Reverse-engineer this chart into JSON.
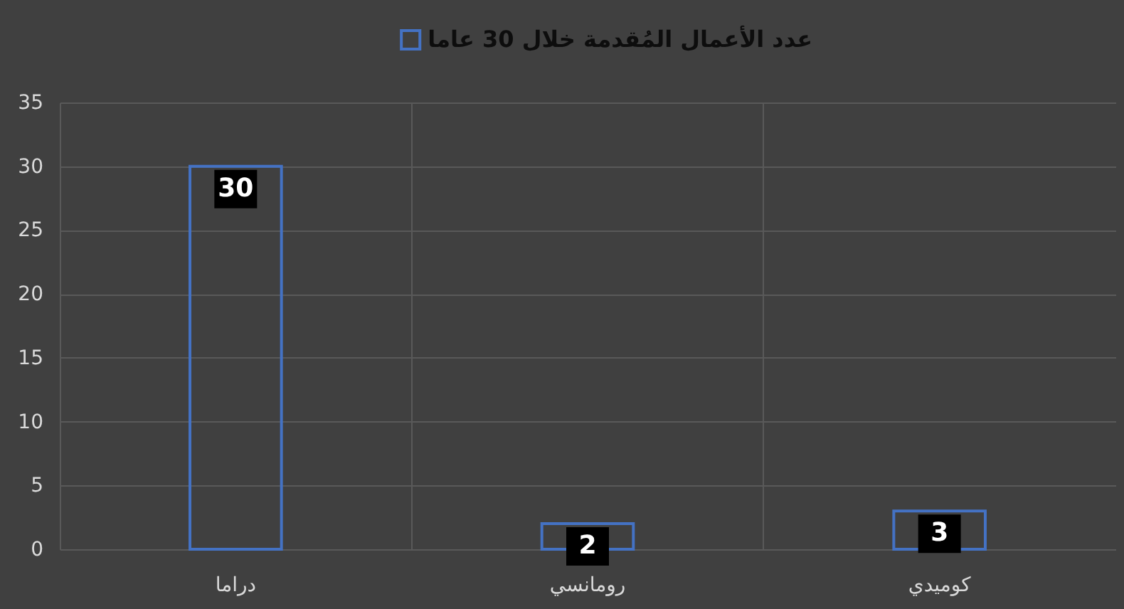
{
  "chart_data": {
    "type": "bar",
    "categories": [
      "دراما",
      "رومانسي",
      "كوميدي"
    ],
    "series": [
      {
        "name": "عدد الأعمال المُقدمة خلال 30 عاما",
        "color": "#4472c4",
        "values": [
          30,
          2,
          3
        ]
      }
    ],
    "ylim": [
      0,
      35
    ],
    "yticks": [
      0,
      5,
      10,
      15,
      20,
      25,
      30,
      35
    ],
    "grid": true,
    "legend": "top",
    "data_labels": true
  }
}
